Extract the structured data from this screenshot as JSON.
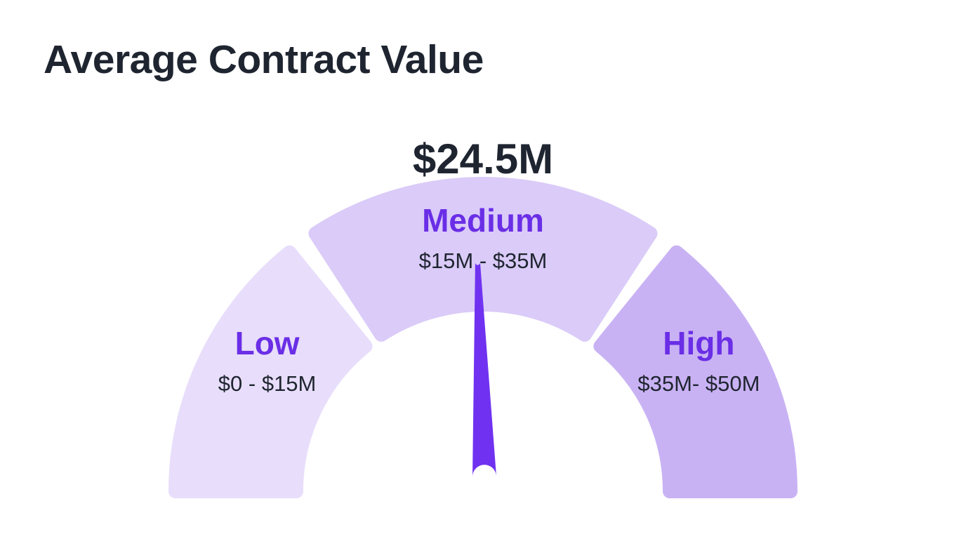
{
  "title": "Average Contract Value",
  "chart_data": {
    "type": "gauge",
    "value": 24.5,
    "value_label": "$24.5M",
    "min": 0,
    "max": 50,
    "bands": [
      {
        "name": "Low",
        "range_label": "$0 - $15M",
        "from": 0,
        "to": 15,
        "color": "#e8defb"
      },
      {
        "name": "Medium",
        "range_label": "$15M - $35M",
        "from": 15,
        "to": 35,
        "color": "#dacbf8"
      },
      {
        "name": "High",
        "range_label": "$35M- $50M",
        "from": 35,
        "to": 50,
        "color": "#c9b2f4"
      }
    ],
    "needle_color": "#7032f0",
    "label_color": "#6a2ee6"
  }
}
